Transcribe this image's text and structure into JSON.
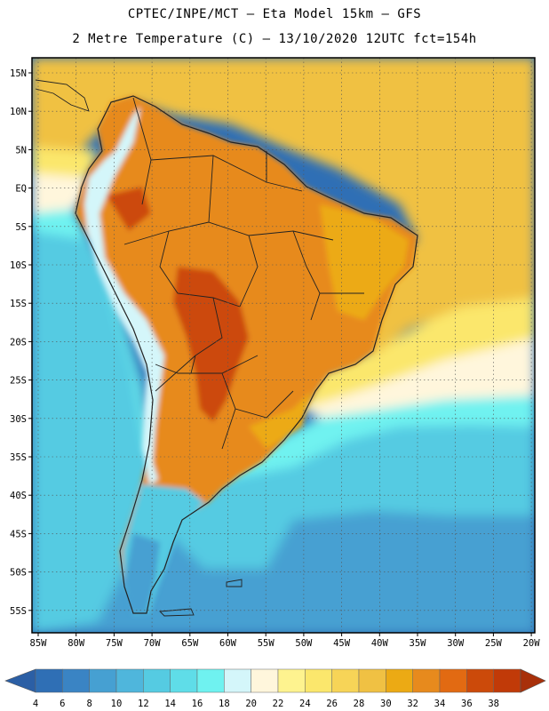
{
  "header": {
    "line1": "CPTEC/INPE/MCT –  Eta Model 15km – GFS",
    "line2": "2 Metre Temperature (C) – 13/10/2020 12UTC fct=154h"
  },
  "axes": {
    "lat_labels": [
      "15N",
      "10N",
      "5N",
      "EQ",
      "5S",
      "10S",
      "15S",
      "20S",
      "25S",
      "30S",
      "35S",
      "40S",
      "45S",
      "50S",
      "55S"
    ],
    "lon_labels": [
      "85W",
      "80W",
      "75W",
      "70W",
      "65W",
      "60W",
      "55W",
      "50W",
      "45W",
      "40W",
      "35W",
      "30W",
      "25W",
      "20W"
    ]
  },
  "colorbar": {
    "labels": [
      "4",
      "6",
      "8",
      "10",
      "12",
      "14",
      "16",
      "18",
      "20",
      "22",
      "24",
      "26",
      "28",
      "30",
      "32",
      "34",
      "36",
      "38"
    ],
    "colors": [
      "#2f6fb5",
      "#3a84c4",
      "#46a0d2",
      "#4fb6dc",
      "#55cbe2",
      "#5fdde8",
      "#6ff2f0",
      "#d4f6fa",
      "#fff6dc",
      "#fef38f",
      "#fbe76c",
      "#f7d457",
      "#f0c143",
      "#ecaa14",
      "#e78a1d",
      "#e26a12",
      "#cc4a0a",
      "#c13a08"
    ],
    "low_arrow_color": "#2b5fa5",
    "high_arrow_color": "#a8300a"
  },
  "map_colors": {
    "ocean_deep": "#2f6fb5",
    "ocean_mid": "#46a0d2",
    "ocean_shelf": "#55cbe2",
    "ocean_cyan": "#6ff2f0",
    "ocean_pale": "#fff6dc",
    "ocean_warm_yellow": "#fbe76c",
    "ocean_tropical": "#f0c143",
    "land_hot": "#e78a1d",
    "land_very_hot": "#cc4a0a",
    "land_warm": "#ecaa14",
    "andes_cold": "#d4f6fa",
    "patagonia_cool": "#55cbe2",
    "border_line": "#222222"
  }
}
